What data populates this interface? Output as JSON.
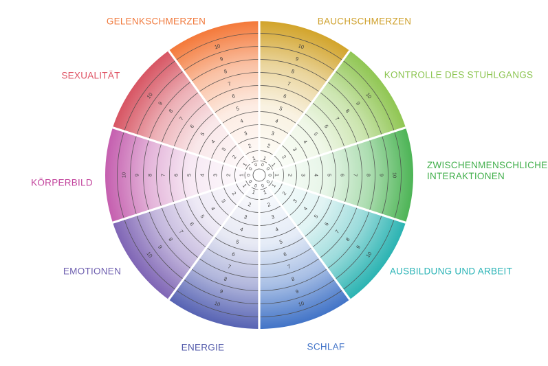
{
  "figure": {
    "kind": "life-wheel-assessment-template",
    "description": "Circular rating wheel with 10 equal segments; each segment has concentric rating rings numbered 0 to 10 from center outward, separated by white radial dividers."
  },
  "chart_data": {
    "type": "pie",
    "subtype": "radial-rating-wheel",
    "legend_position": "around-wheel",
    "grid": true,
    "scale": {
      "min": 0,
      "max": 10,
      "ring_values": [
        0,
        1,
        2,
        3,
        4,
        5,
        6,
        7,
        8,
        9,
        10
      ]
    },
    "segments": [
      {
        "id": "gelenkschmerzen",
        "label": "GELENKSCHMERZEN",
        "value_selected": null,
        "color": "#F4793A",
        "label_color": "#F0793C"
      },
      {
        "id": "bauchschmerzen",
        "label": "BAUCHSCHMERZEN",
        "value_selected": null,
        "color": "#D2A42B",
        "label_color": "#CFA12D"
      },
      {
        "id": "kontrolle-des-stuhlgangs",
        "label": "KONTROLLE DES STUHLGANGS",
        "value_selected": null,
        "color": "#90C653",
        "label_color": "#8CC551"
      },
      {
        "id": "zwischenmenschliche-interaktionen",
        "label": "ZWISCHENMENSCHLICHE INTERAKTIONEN",
        "value_selected": null,
        "color": "#4DB456",
        "label_color": "#41AF4B"
      },
      {
        "id": "ausbildung-und-arbeit",
        "label": "AUSBILDUNG UND ARBEIT",
        "value_selected": null,
        "color": "#2BB3B2",
        "label_color": "#29B3B6"
      },
      {
        "id": "schlaf",
        "label": "SCHLAF",
        "value_selected": null,
        "color": "#4274C7",
        "label_color": "#4173C8"
      },
      {
        "id": "energie",
        "label": "ENERGIE",
        "value_selected": null,
        "color": "#5763B3",
        "label_color": "#5058A9"
      },
      {
        "id": "emotionen",
        "label": "EMOTIONEN",
        "value_selected": null,
        "color": "#7F65B5",
        "label_color": "#6F60B0"
      },
      {
        "id": "koerperbild",
        "label": "KÖRPERBILD",
        "value_selected": null,
        "color": "#C55FAF",
        "label_color": "#C2439C"
      },
      {
        "id": "sexualitaet",
        "label": "SEXUALITÄT",
        "value_selected": null,
        "color": "#D75563",
        "label_color": "#DF5263"
      }
    ],
    "ring_number_color": "#3D3D3D",
    "ring_line_color": "#4B4B4B",
    "divider_color": "#FFFFFF"
  }
}
